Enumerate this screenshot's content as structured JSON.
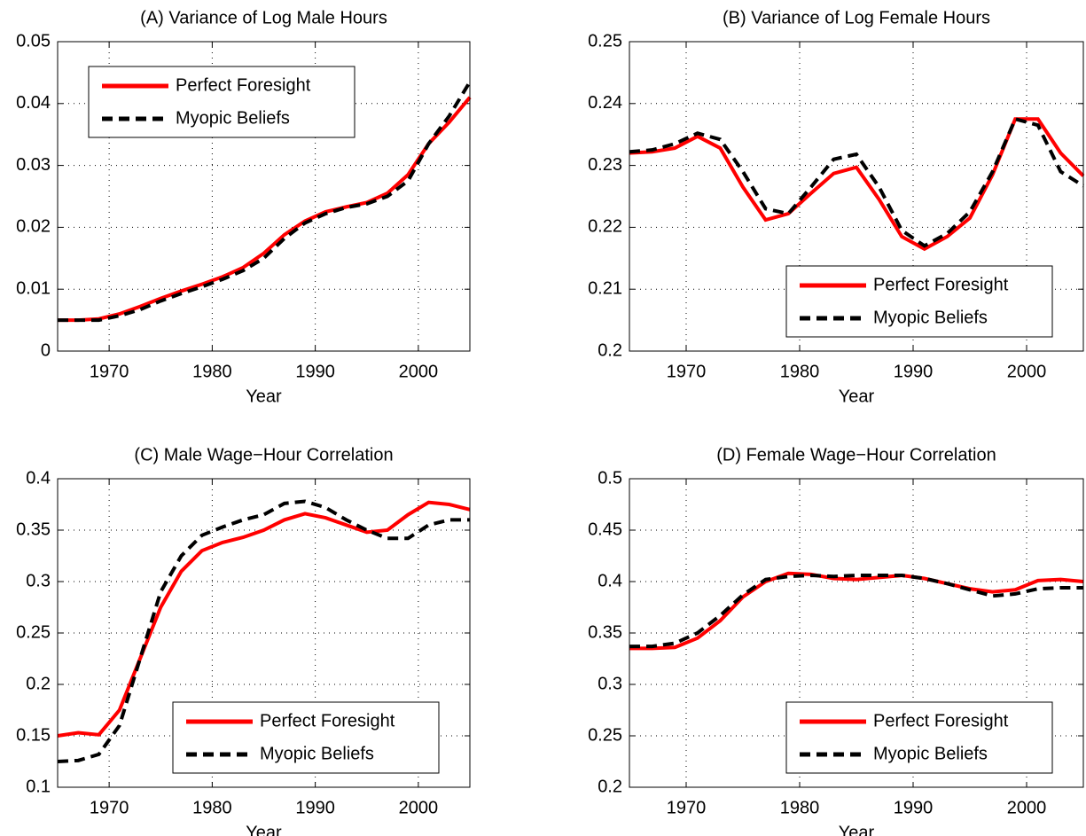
{
  "chart_data": [
    {
      "type": "line",
      "title": "(A) Variance of Log Male Hours",
      "xlabel": "Year",
      "x": [
        1965,
        1967,
        1969,
        1971,
        1973,
        1975,
        1977,
        1979,
        1981,
        1983,
        1985,
        1987,
        1989,
        1991,
        1993,
        1995,
        1997,
        1999,
        2001,
        2003,
        2005
      ],
      "xlim": [
        1965,
        2005
      ],
      "xticks": [
        1970,
        1980,
        1990,
        2000
      ],
      "ylim": [
        0,
        0.05
      ],
      "yticks": [
        0,
        0.01,
        0.02,
        0.03,
        0.04,
        0.05
      ],
      "grid": true,
      "legend": "upper left",
      "series": [
        {
          "name": "Perfect Foresight",
          "color": "#ff0000",
          "linestyle": "solid",
          "values": [
            0.005,
            0.005,
            0.0052,
            0.006,
            0.0072,
            0.0085,
            0.0097,
            0.0108,
            0.012,
            0.0135,
            0.0158,
            0.0188,
            0.021,
            0.0225,
            0.0233,
            0.024,
            0.0255,
            0.0285,
            0.0335,
            0.037,
            0.041
          ]
        },
        {
          "name": "Myopic Beliefs",
          "color": "#000000",
          "linestyle": "dashed",
          "values": [
            0.005,
            0.005,
            0.005,
            0.0057,
            0.0067,
            0.0081,
            0.0093,
            0.0104,
            0.0116,
            0.013,
            0.015,
            0.0182,
            0.0207,
            0.0222,
            0.0232,
            0.0238,
            0.025,
            0.0275,
            0.0335,
            0.038,
            0.0435
          ]
        }
      ]
    },
    {
      "type": "line",
      "title": "(B) Variance of Log Female Hours",
      "xlabel": "Year",
      "x": [
        1965,
        1967,
        1969,
        1971,
        1973,
        1975,
        1977,
        1979,
        1981,
        1983,
        1985,
        1987,
        1989,
        1991,
        1993,
        1995,
        1997,
        1999,
        2001,
        2003,
        2005
      ],
      "xlim": [
        1965,
        2005
      ],
      "xticks": [
        1970,
        1980,
        1990,
        2000
      ],
      "ylim": [
        0.2,
        0.25
      ],
      "yticks": [
        0.2,
        0.21,
        0.22,
        0.23,
        0.24,
        0.25
      ],
      "grid": true,
      "legend": "lower right",
      "series": [
        {
          "name": "Perfect Foresight",
          "color": "#ff0000",
          "linestyle": "solid",
          "values": [
            0.232,
            0.2322,
            0.2328,
            0.2347,
            0.2328,
            0.2265,
            0.2212,
            0.2222,
            0.2255,
            0.2287,
            0.2297,
            0.2245,
            0.2185,
            0.2165,
            0.2185,
            0.2215,
            0.2285,
            0.2375,
            0.2375,
            0.232,
            0.2283
          ]
        },
        {
          "name": "Myopic Beliefs",
          "color": "#000000",
          "linestyle": "dashed",
          "values": [
            0.2322,
            0.2325,
            0.2335,
            0.2352,
            0.2342,
            0.229,
            0.223,
            0.2222,
            0.2265,
            0.231,
            0.2318,
            0.2265,
            0.2195,
            0.217,
            0.219,
            0.2225,
            0.229,
            0.2375,
            0.2365,
            0.229,
            0.2267
          ]
        }
      ]
    },
    {
      "type": "line",
      "title": "(C) Male Wage−Hour Correlation",
      "xlabel": "Year",
      "x": [
        1965,
        1967,
        1969,
        1971,
        1973,
        1975,
        1977,
        1979,
        1981,
        1983,
        1985,
        1987,
        1989,
        1991,
        1993,
        1995,
        1997,
        1999,
        2001,
        2003,
        2005
      ],
      "xlim": [
        1965,
        2005
      ],
      "xticks": [
        1970,
        1980,
        1990,
        2000
      ],
      "ylim": [
        0.1,
        0.4
      ],
      "yticks": [
        0.1,
        0.15,
        0.2,
        0.25,
        0.3,
        0.35,
        0.4
      ],
      "grid": true,
      "legend": "lower right",
      "series": [
        {
          "name": "Perfect Foresight",
          "color": "#ff0000",
          "linestyle": "solid",
          "values": [
            0.15,
            0.153,
            0.151,
            0.175,
            0.225,
            0.275,
            0.31,
            0.33,
            0.338,
            0.343,
            0.35,
            0.36,
            0.366,
            0.362,
            0.355,
            0.348,
            0.35,
            0.365,
            0.377,
            0.375,
            0.37
          ]
        },
        {
          "name": "Myopic Beliefs",
          "color": "#000000",
          "linestyle": "dashed",
          "values": [
            0.125,
            0.126,
            0.132,
            0.16,
            0.225,
            0.29,
            0.325,
            0.345,
            0.353,
            0.36,
            0.365,
            0.376,
            0.378,
            0.372,
            0.36,
            0.35,
            0.342,
            0.342,
            0.355,
            0.36,
            0.36
          ]
        }
      ]
    },
    {
      "type": "line",
      "title": "(D) Female Wage−Hour Correlation",
      "xlabel": "Year",
      "x": [
        1965,
        1967,
        1969,
        1971,
        1973,
        1975,
        1977,
        1979,
        1981,
        1983,
        1985,
        1987,
        1989,
        1991,
        1993,
        1995,
        1997,
        1999,
        2001,
        2003,
        2005
      ],
      "xlim": [
        1965,
        2005
      ],
      "xticks": [
        1970,
        1980,
        1990,
        2000
      ],
      "ylim": [
        0.2,
        0.5
      ],
      "yticks": [
        0.2,
        0.25,
        0.3,
        0.35,
        0.4,
        0.45,
        0.5
      ],
      "grid": true,
      "legend": "lower right",
      "series": [
        {
          "name": "Perfect Foresight",
          "color": "#ff0000",
          "linestyle": "solid",
          "values": [
            0.335,
            0.335,
            0.336,
            0.345,
            0.362,
            0.385,
            0.4,
            0.408,
            0.407,
            0.403,
            0.402,
            0.404,
            0.406,
            0.403,
            0.398,
            0.393,
            0.39,
            0.392,
            0.401,
            0.402,
            0.4
          ]
        },
        {
          "name": "Myopic Beliefs",
          "color": "#000000",
          "linestyle": "dashed",
          "values": [
            0.337,
            0.337,
            0.34,
            0.35,
            0.367,
            0.387,
            0.402,
            0.405,
            0.406,
            0.405,
            0.406,
            0.406,
            0.406,
            0.403,
            0.398,
            0.392,
            0.386,
            0.388,
            0.393,
            0.394,
            0.394
          ]
        }
      ]
    }
  ]
}
